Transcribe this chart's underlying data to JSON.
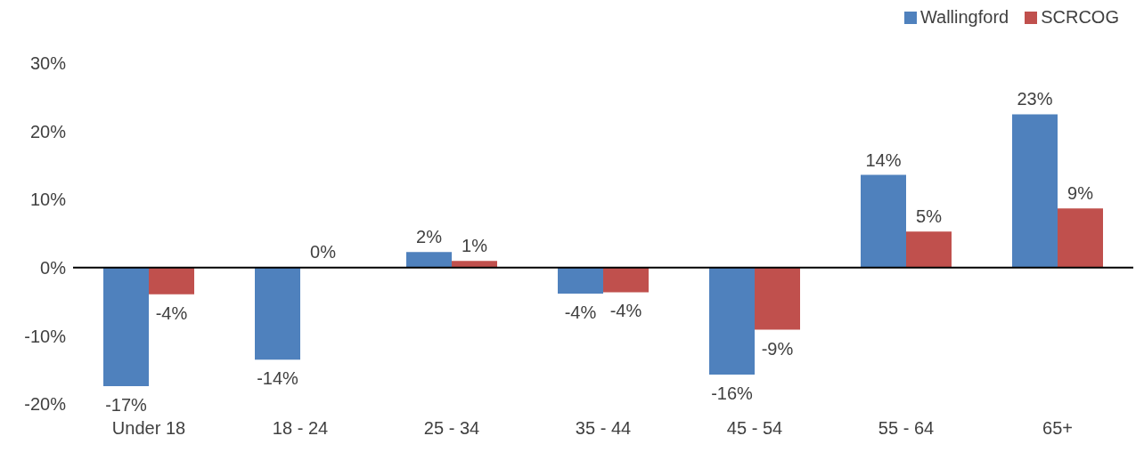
{
  "chart_data": {
    "type": "bar",
    "categories": [
      "Under 18",
      "18 - 24",
      "25 - 34",
      "35 - 44",
      "45 - 54",
      "55 - 64",
      "65+"
    ],
    "series": [
      {
        "name": "Wallingford",
        "color": "#4f81bd",
        "values": [
          -17.4,
          -13.5,
          2.3,
          -3.8,
          -15.7,
          13.6,
          22.5
        ],
        "value_labels": [
          "-17%",
          "-14%",
          "2%",
          "-4%",
          "-16%",
          "14%",
          "23%"
        ]
      },
      {
        "name": "SCRCOG",
        "color": "#c0504d",
        "values": [
          -3.9,
          0.1,
          1.0,
          -3.6,
          -9.1,
          5.3,
          8.7
        ],
        "value_labels": [
          "-4%",
          "0%",
          "1%",
          "-4%",
          "-9%",
          "5%",
          "9%"
        ]
      }
    ],
    "ylim": [
      -20,
      30
    ],
    "yticks": [
      {
        "value": -20,
        "label": "-20%"
      },
      {
        "value": -10,
        "label": "-10%"
      },
      {
        "value": 0,
        "label": "0%"
      },
      {
        "value": 10,
        "label": "10%"
      },
      {
        "value": 20,
        "label": "20%"
      },
      {
        "value": 30,
        "label": "30%"
      }
    ],
    "ref_lines": [
      {
        "axis": "y",
        "value": 0,
        "color": "#000000"
      }
    ],
    "grid": false,
    "legend": "top right"
  }
}
